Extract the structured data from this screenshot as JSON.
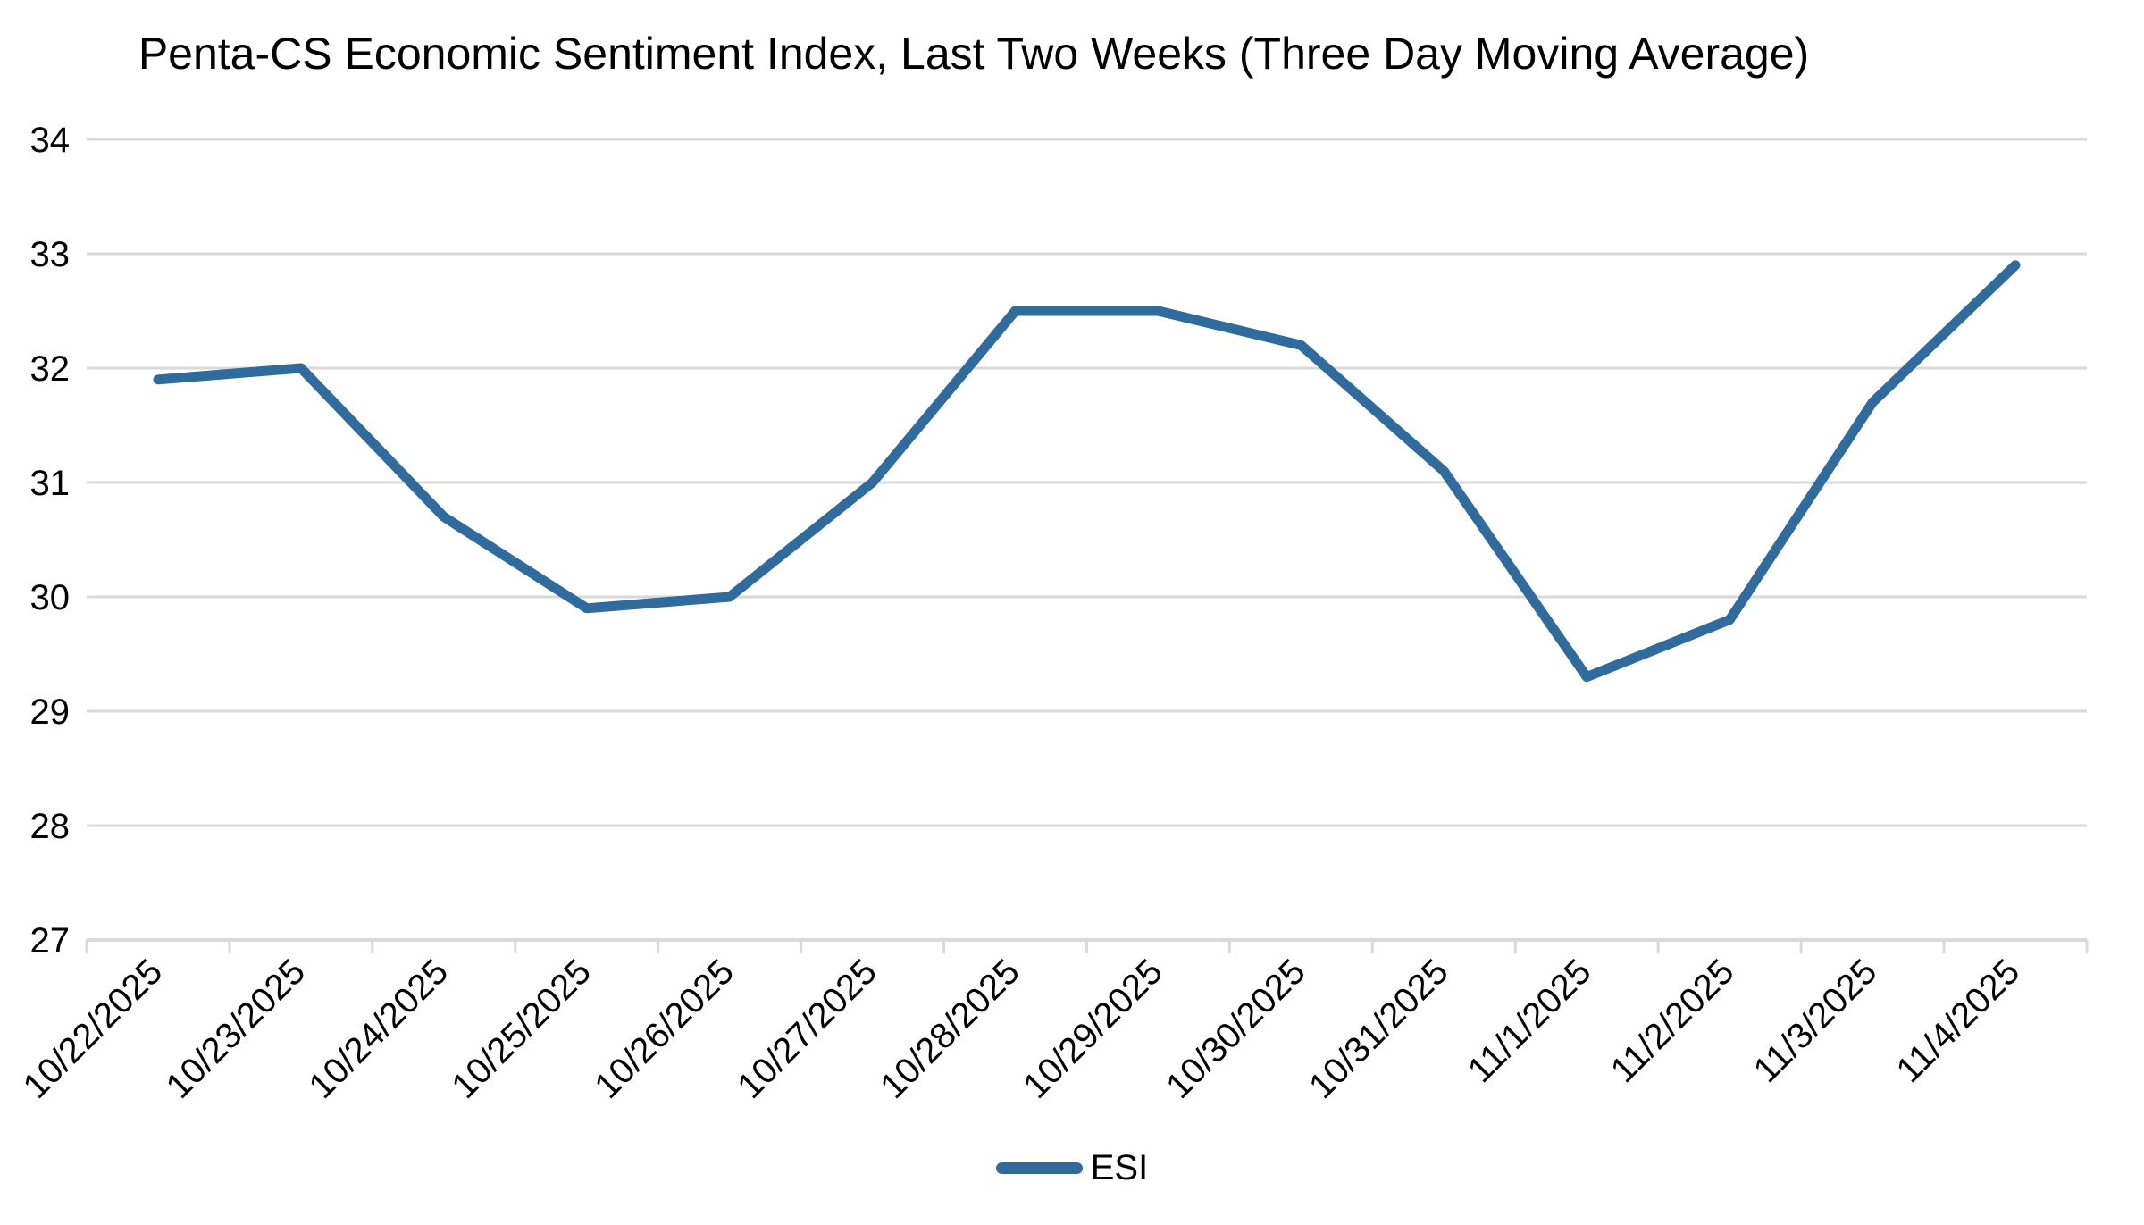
{
  "chart_data": {
    "type": "line",
    "title": "Penta-CS Economic Sentiment Index, Last Two Weeks (Three Day Moving Average)",
    "categories": [
      "10/22/2025",
      "10/23/2025",
      "10/24/2025",
      "10/25/2025",
      "10/26/2025",
      "10/27/2025",
      "10/28/2025",
      "10/29/2025",
      "10/30/2025",
      "10/31/2025",
      "11/1/2025",
      "11/2/2025",
      "11/3/2025",
      "11/4/2025"
    ],
    "series": [
      {
        "name": "ESI",
        "values": [
          31.9,
          32.0,
          30.7,
          29.9,
          30.0,
          31.0,
          32.5,
          32.5,
          32.2,
          31.1,
          29.3,
          29.8,
          31.7,
          32.9
        ],
        "color": "#2F6B9C"
      }
    ],
    "xlabel": "",
    "ylabel": "",
    "ylim": [
      27,
      34
    ],
    "yticks": [
      27,
      28,
      29,
      30,
      31,
      32,
      33,
      34
    ],
    "x_label_rotation": -45,
    "grid": true,
    "gridline_color": "#D9D9D9",
    "axis_line_color": "#D9D9D9",
    "tick_color": "#D9D9D9",
    "text_color": "#000000",
    "background_color": "#FFFFFF",
    "legend_position": "bottom-center"
  }
}
